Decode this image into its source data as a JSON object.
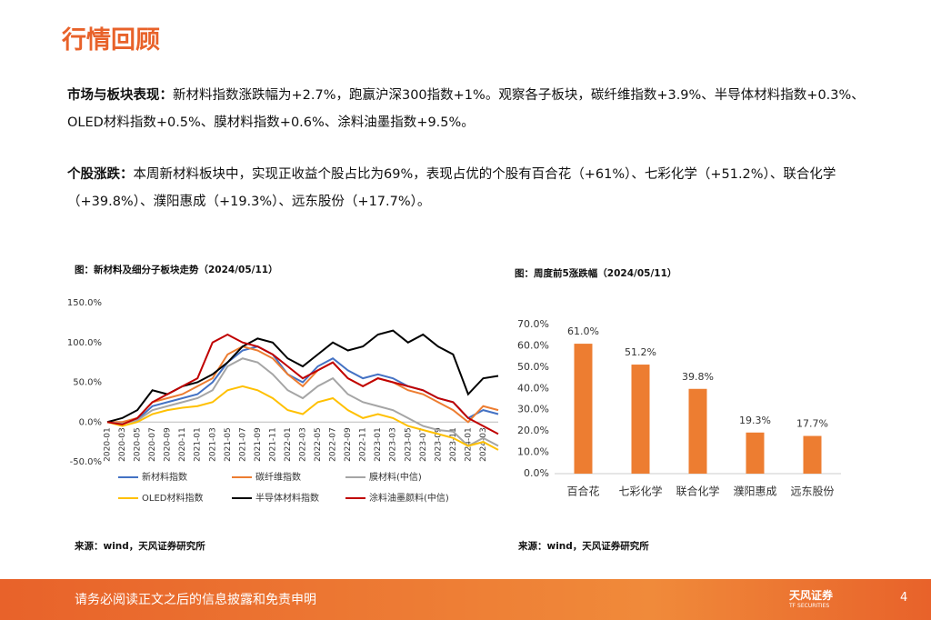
{
  "header": {
    "title": "行情回顾"
  },
  "paragraphs": [
    {
      "label": "市场与板块表现：",
      "text": "新材料指数涨跌幅为+2.7%，跑赢沪深300指数+1%。观察各子板块，碳纤维指数+3.9%、半导体材料指数+0.3%、OLED材料指数+0.5%、膜材料指数+0.6%、涂料油墨指数+9.5%。"
    },
    {
      "label": "个股涨跌：",
      "text": "本周新材料板块中，实现正收益个股占比为69%，表现占优的个股有百合花（+61%）、七彩化学（+51.2%）、联合化学（+39.8%）、濮阳惠成（+19.3%）、远东股份（+17.7%）。"
    }
  ],
  "chart_data": [
    {
      "type": "line",
      "title": "图：新材料及细分子板块走势（2024/05/11）",
      "source": "来源：wind，天风证券研究所",
      "categories": [
        "2020-01",
        "2020-03",
        "2020-05",
        "2020-07",
        "2020-09",
        "2020-11",
        "2021-01",
        "2021-03",
        "2021-05",
        "2021-07",
        "2021-09",
        "2021-11",
        "2022-01",
        "2022-03",
        "2022-05",
        "2022-07",
        "2022-09",
        "2022-11",
        "2023-01",
        "2023-03",
        "2023-05",
        "2023-07",
        "2023-09",
        "2023-11",
        "2024-01",
        "2024-03",
        null
      ],
      "ylim": [
        -50,
        150
      ],
      "yticks": [
        {
          "value": -50,
          "label": "-50.0%"
        },
        {
          "value": 0,
          "label": "0.0%"
        },
        {
          "value": 50,
          "label": "50.0%"
        },
        {
          "value": 100,
          "label": "100.0%"
        },
        {
          "value": 150,
          "label": "150.0%"
        }
      ],
      "series": [
        {
          "name": "新材料指数",
          "color": "#4472c4",
          "values": [
            0,
            -2,
            3,
            20,
            25,
            30,
            35,
            50,
            75,
            90,
            95,
            85,
            60,
            50,
            70,
            80,
            65,
            55,
            60,
            55,
            45,
            40,
            30,
            25,
            5,
            15,
            10
          ]
        },
        {
          "name": "碳纤维指数",
          "color": "#ed7d31",
          "values": [
            0,
            0,
            5,
            25,
            30,
            35,
            45,
            55,
            85,
            95,
            90,
            80,
            60,
            45,
            65,
            75,
            55,
            45,
            55,
            50,
            40,
            35,
            25,
            15,
            0,
            20,
            15
          ]
        },
        {
          "name": "膜材料(中信)",
          "color": "#a5a5a5",
          "values": [
            0,
            -2,
            2,
            15,
            20,
            25,
            30,
            40,
            70,
            80,
            75,
            60,
            40,
            30,
            45,
            55,
            35,
            25,
            20,
            15,
            5,
            -5,
            -10,
            -12,
            -30,
            -20,
            -30
          ]
        },
        {
          "name": "OLED材料指数",
          "color": "#ffc000",
          "values": [
            0,
            -5,
            0,
            10,
            15,
            18,
            20,
            25,
            40,
            45,
            40,
            30,
            15,
            10,
            25,
            30,
            15,
            5,
            10,
            5,
            -5,
            -10,
            -15,
            -20,
            -30,
            -25,
            -35
          ]
        },
        {
          "name": "半导体材料指数",
          "color": "#000000",
          "values": [
            0,
            5,
            15,
            40,
            35,
            45,
            50,
            60,
            75,
            95,
            105,
            100,
            80,
            70,
            85,
            100,
            90,
            95,
            110,
            115,
            100,
            110,
            95,
            85,
            35,
            55,
            58
          ]
        },
        {
          "name": "涂料油墨颜料(中信)",
          "color": "#c00000",
          "values": [
            0,
            -3,
            5,
            25,
            35,
            45,
            55,
            100,
            110,
            100,
            95,
            85,
            70,
            55,
            65,
            75,
            55,
            45,
            55,
            50,
            45,
            40,
            30,
            25,
            5,
            -5,
            -15
          ]
        }
      ]
    },
    {
      "type": "bar",
      "title": "图：周度前5涨跌幅（2024/05/11）",
      "source": "来源：wind，天风证券研究所",
      "categories": [
        "百合花",
        "七彩化学",
        "联合化学",
        "濮阳惠成",
        "远东股份"
      ],
      "values": [
        61.0,
        51.2,
        39.8,
        19.3,
        17.7
      ],
      "value_labels": [
        "61.0%",
        "51.2%",
        "39.8%",
        "19.3%",
        "17.7%"
      ],
      "color": "#ed7d31",
      "ylim": [
        0,
        70
      ],
      "yticks": [
        {
          "value": 0,
          "label": "0.0%"
        },
        {
          "value": 10,
          "label": "10.0%"
        },
        {
          "value": 20,
          "label": "20.0%"
        },
        {
          "value": 30,
          "label": "30.0%"
        },
        {
          "value": 40,
          "label": "40.0%"
        },
        {
          "value": 50,
          "label": "50.0%"
        },
        {
          "value": 60,
          "label": "60.0%"
        },
        {
          "value": 70,
          "label": "70.0%"
        }
      ]
    }
  ],
  "footer": {
    "text": "请务必阅读正文之后的信息披露和免责申明",
    "logo": "天风证券",
    "logo_en": "TF SECURITIES",
    "page": "4"
  }
}
